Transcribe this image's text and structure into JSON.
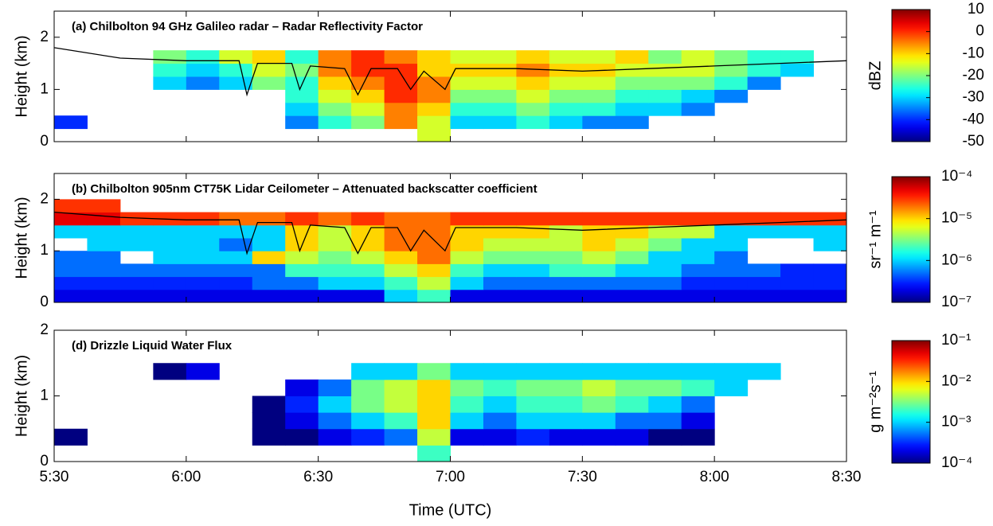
{
  "chart_data": [
    {
      "type": "heatmap",
      "title": "(a) Chilbolton 94 GHz Galileo radar – Radar Reflectivity Factor",
      "ylabel": "Height (km)",
      "xlim": [
        5.5,
        8.5
      ],
      "ylim": [
        0,
        2.5
      ],
      "yticks": [
        0,
        1,
        2
      ],
      "x_edges": [
        5.5,
        5.625,
        5.75,
        5.875,
        6,
        6.125,
        6.25,
        6.375,
        6.5,
        6.625,
        6.75,
        6.875,
        7,
        7.125,
        7.25,
        7.375,
        7.5,
        7.625,
        7.75,
        7.875,
        8,
        8.125,
        8.25,
        8.375,
        8.5
      ],
      "y_edges": [
        0,
        0.25,
        0.5,
        0.75,
        1,
        1.25,
        1.5,
        1.75,
        2
      ],
      "z": [
        [
          null,
          null,
          null,
          null,
          null,
          null,
          null,
          null,
          null,
          null,
          null,
          -15,
          null,
          null,
          null,
          null,
          null,
          null,
          null,
          null,
          null,
          null,
          null,
          null
        ],
        [
          -40,
          null,
          null,
          null,
          null,
          null,
          null,
          -35,
          -25,
          -20,
          -5,
          -15,
          -30,
          -30,
          -25,
          -30,
          -35,
          -35,
          null,
          null,
          null,
          null,
          null,
          null
        ],
        [
          null,
          null,
          null,
          null,
          null,
          null,
          null,
          -30,
          -20,
          -15,
          -5,
          -10,
          -25,
          -25,
          -20,
          -25,
          -25,
          -30,
          -30,
          -35,
          null,
          null,
          null,
          null
        ],
        [
          null,
          null,
          null,
          null,
          null,
          null,
          null,
          -25,
          -15,
          -10,
          0,
          -5,
          -20,
          -20,
          -15,
          -20,
          -20,
          -25,
          -25,
          -30,
          -35,
          null,
          null,
          null
        ],
        [
          null,
          null,
          null,
          -30,
          -35,
          -30,
          -20,
          -25,
          -10,
          -5,
          0,
          -5,
          -15,
          -15,
          -10,
          -15,
          -15,
          -20,
          -20,
          -20,
          -25,
          -35,
          null,
          null
        ],
        [
          null,
          null,
          null,
          -25,
          -30,
          -25,
          -15,
          -20,
          -5,
          0,
          0,
          -10,
          -10,
          -10,
          -5,
          -10,
          -10,
          -15,
          -15,
          -15,
          -20,
          -25,
          -30,
          null
        ],
        [
          null,
          null,
          null,
          -20,
          -25,
          -15,
          -10,
          -25,
          -5,
          0,
          -5,
          -10,
          -15,
          -15,
          -10,
          -15,
          -15,
          -10,
          -20,
          -15,
          -20,
          -25,
          -25,
          null
        ],
        [
          null,
          null,
          null,
          null,
          null,
          null,
          null,
          null,
          null,
          null,
          null,
          null,
          null,
          null,
          null,
          null,
          null,
          null,
          null,
          null,
          null,
          null,
          null,
          null
        ]
      ],
      "line": {
        "color": "#000000",
        "x": [
          5.5,
          5.75,
          6.0,
          6.2,
          6.23,
          6.27,
          6.4,
          6.43,
          6.47,
          6.6,
          6.65,
          6.7,
          6.8,
          6.85,
          6.9,
          6.98,
          7.02,
          7.25,
          7.5,
          7.75,
          8.0,
          8.25,
          8.5
        ],
        "y": [
          1.8,
          1.6,
          1.55,
          1.55,
          0.9,
          1.5,
          1.5,
          1.0,
          1.45,
          1.4,
          0.9,
          1.4,
          1.4,
          1.0,
          1.35,
          1.0,
          1.4,
          1.4,
          1.35,
          1.4,
          1.45,
          1.5,
          1.55
        ]
      },
      "colorbar": {
        "label": "dBZ",
        "log": false,
        "lim": [
          -50,
          10
        ],
        "ticks": [
          10,
          0,
          -10,
          -20,
          -30,
          -40,
          -50
        ]
      }
    },
    {
      "type": "heatmap",
      "title": "(b) Chilbolton 905nm CT75K Lidar Ceilometer – Attenuated backscatter coefficient",
      "ylabel": "Height (km)",
      "xlim": [
        5.5,
        8.5
      ],
      "ylim": [
        0,
        2.5
      ],
      "yticks": [
        0,
        1,
        2
      ],
      "x_edges": [
        5.5,
        5.625,
        5.75,
        5.875,
        6,
        6.125,
        6.25,
        6.375,
        6.5,
        6.625,
        6.75,
        6.875,
        7,
        7.125,
        7.25,
        7.375,
        7.5,
        7.625,
        7.75,
        7.875,
        8,
        8.125,
        8.25,
        8.375,
        8.5
      ],
      "y_edges": [
        0,
        0.25,
        0.5,
        0.75,
        1,
        1.25,
        1.5,
        1.75,
        2
      ],
      "z": [
        [
          2e-07,
          2e-07,
          2e-07,
          2e-07,
          2e-07,
          2e-07,
          2e-07,
          2e-07,
          2e-07,
          2e-07,
          1e-06,
          2e-06,
          2e-07,
          2e-07,
          2e-07,
          2e-07,
          2e-07,
          2e-07,
          2e-07,
          2e-07,
          2e-07,
          2e-07,
          2e-07,
          2e-07
        ],
        [
          3e-07,
          3e-07,
          3e-07,
          3e-07,
          3e-07,
          3e-07,
          5e-07,
          5e-07,
          1e-06,
          1e-06,
          2e-06,
          5e-06,
          1e-06,
          5e-07,
          5e-07,
          5e-07,
          5e-07,
          5e-07,
          5e-07,
          3e-07,
          3e-07,
          3e-07,
          3e-07,
          3e-07
        ],
        [
          5e-07,
          5e-07,
          5e-07,
          5e-07,
          5e-07,
          5e-07,
          5e-07,
          2e-06,
          2e-06,
          2e-06,
          5e-06,
          1e-05,
          2e-06,
          1e-06,
          1e-06,
          2e-06,
          2e-06,
          1e-06,
          1e-06,
          5e-07,
          5e-07,
          5e-07,
          3e-07,
          3e-07
        ],
        [
          5e-07,
          5e-07,
          null,
          1e-06,
          1e-06,
          1e-06,
          1e-05,
          5e-06,
          3e-06,
          5e-06,
          1e-05,
          2e-05,
          5e-06,
          3e-06,
          3e-06,
          3e-06,
          5e-06,
          3e-06,
          1e-06,
          1e-06,
          5e-07,
          null,
          null,
          null
        ],
        [
          null,
          1e-06,
          1e-06,
          1e-06,
          1e-06,
          5e-07,
          1e-06,
          1e-05,
          5e-06,
          1e-05,
          2e-05,
          2e-05,
          1e-05,
          5e-06,
          5e-06,
          5e-06,
          1e-05,
          5e-06,
          3e-06,
          1e-06,
          1e-06,
          null,
          null,
          1e-06
        ],
        [
          1e-06,
          1e-06,
          1e-06,
          1e-06,
          1e-06,
          1e-06,
          1e-06,
          1e-05,
          5e-06,
          1e-05,
          2e-05,
          2e-05,
          1e-05,
          1e-05,
          1e-05,
          5e-06,
          1e-05,
          1e-05,
          5e-06,
          5e-06,
          1e-06,
          1e-06,
          1e-06,
          1e-06
        ],
        [
          5e-05,
          5e-05,
          3e-05,
          3e-05,
          3e-05,
          2e-05,
          2e-05,
          3e-05,
          2e-05,
          3e-05,
          2e-05,
          2e-05,
          3e-05,
          3e-05,
          3e-05,
          3e-05,
          3e-05,
          3e-05,
          3e-05,
          3e-05,
          3e-05,
          3e-05,
          3e-05,
          3e-05
        ],
        [
          3e-05,
          3e-05,
          null,
          null,
          null,
          null,
          null,
          null,
          null,
          null,
          null,
          null,
          null,
          null,
          null,
          null,
          null,
          null,
          null,
          null,
          null,
          null,
          null,
          null
        ]
      ],
      "line": {
        "color": "#000000",
        "x": [
          5.5,
          5.75,
          6.0,
          6.2,
          6.23,
          6.27,
          6.4,
          6.43,
          6.47,
          6.6,
          6.65,
          6.7,
          6.8,
          6.85,
          6.9,
          6.98,
          7.02,
          7.25,
          7.5,
          7.75,
          8.0,
          8.25,
          8.5
        ],
        "y": [
          1.75,
          1.65,
          1.6,
          1.6,
          0.95,
          1.55,
          1.55,
          1.0,
          1.5,
          1.45,
          0.95,
          1.45,
          1.45,
          1.0,
          1.4,
          1.0,
          1.45,
          1.45,
          1.4,
          1.45,
          1.5,
          1.55,
          1.6
        ]
      },
      "colorbar": {
        "label": "sr⁻¹ m⁻¹",
        "log": true,
        "lim": [
          1e-07,
          0.0001
        ],
        "ticks": [
          {
            "value": 0.0001,
            "label": "10⁻⁴"
          },
          {
            "value": 1e-05,
            "label": "10⁻⁵"
          },
          {
            "value": 1e-06,
            "label": "10⁻⁶"
          },
          {
            "value": 1e-07,
            "label": "10⁻⁷"
          }
        ]
      }
    },
    {
      "type": "heatmap",
      "title": "(d) Drizzle Liquid Water Flux",
      "ylabel": "Height (km)",
      "xlabel": "Time (UTC)",
      "xlim": [
        5.5,
        8.5
      ],
      "ylim": [
        0,
        2
      ],
      "yticks": [
        0,
        1,
        2
      ],
      "xticks": [
        {
          "value": 5.5,
          "label": "5:30"
        },
        {
          "value": 6,
          "label": "6:00"
        },
        {
          "value": 6.5,
          "label": "6:30"
        },
        {
          "value": 7,
          "label": "7:00"
        },
        {
          "value": 7.5,
          "label": "7:30"
        },
        {
          "value": 8,
          "label": "8:00"
        },
        {
          "value": 8.5,
          "label": "8:30"
        }
      ],
      "x_edges": [
        5.5,
        5.625,
        5.75,
        5.875,
        6,
        6.125,
        6.25,
        6.375,
        6.5,
        6.625,
        6.75,
        6.875,
        7,
        7.125,
        7.25,
        7.375,
        7.5,
        7.625,
        7.75,
        7.875,
        8,
        8.125,
        8.25,
        8.375,
        8.5
      ],
      "y_edges": [
        0,
        0.25,
        0.5,
        0.75,
        1,
        1.25,
        1.5
      ],
      "z": [
        [
          null,
          null,
          null,
          null,
          null,
          null,
          null,
          null,
          null,
          null,
          null,
          0.002,
          null,
          null,
          null,
          null,
          null,
          null,
          null,
          null,
          null,
          null,
          null,
          null
        ],
        [
          0.0001,
          null,
          null,
          null,
          null,
          null,
          0.0001,
          0.0001,
          0.0002,
          0.0003,
          0.0005,
          0.005,
          0.0002,
          0.0002,
          0.0003,
          0.0002,
          0.0002,
          0.0002,
          0.0001,
          0.0001,
          null,
          null,
          null,
          null
        ],
        [
          null,
          null,
          null,
          null,
          null,
          null,
          0.0001,
          0.0002,
          0.0005,
          0.001,
          0.002,
          0.01,
          0.001,
          0.0005,
          0.001,
          0.001,
          0.001,
          0.0005,
          0.0005,
          0.0002,
          null,
          null,
          null,
          null
        ],
        [
          null,
          null,
          null,
          null,
          null,
          null,
          0.0001,
          0.0003,
          0.001,
          0.003,
          0.005,
          0.01,
          0.002,
          0.001,
          0.002,
          0.002,
          0.003,
          0.002,
          0.001,
          0.0005,
          null,
          null,
          null,
          null
        ],
        [
          null,
          null,
          null,
          null,
          null,
          null,
          null,
          0.0002,
          0.0005,
          0.003,
          0.005,
          0.01,
          0.003,
          0.002,
          0.003,
          0.003,
          0.005,
          0.003,
          0.003,
          0.002,
          0.001,
          null,
          null,
          null
        ],
        [
          null,
          null,
          null,
          0.0001,
          0.0002,
          null,
          null,
          null,
          null,
          0.001,
          0.001,
          0.003,
          0.001,
          0.001,
          0.001,
          0.001,
          0.001,
          0.001,
          0.001,
          0.001,
          0.001,
          0.001,
          null,
          null
        ]
      ],
      "colorbar": {
        "label": "g m⁻²s⁻¹",
        "log": true,
        "lim": [
          0.0001,
          0.1
        ],
        "ticks": [
          {
            "value": 0.1,
            "label": "10⁻¹"
          },
          {
            "value": 0.01,
            "label": "10⁻²"
          },
          {
            "value": 0.001,
            "label": "10⁻³"
          },
          {
            "value": 0.0001,
            "label": "10⁻⁴"
          }
        ]
      }
    }
  ]
}
